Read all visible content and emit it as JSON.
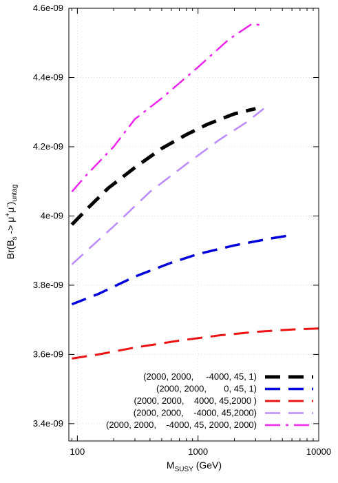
{
  "chart_data": {
    "type": "line",
    "xlabel_main": "M",
    "xlabel_sub": "SUSY",
    "xlabel_rest": " (GeV)",
    "ylabel_parts": [
      "Br(B",
      "s",
      " -> μ",
      "+",
      "μ",
      "-",
      ")",
      "untag"
    ],
    "x_scale": "log",
    "xlim": [
      85,
      10000
    ],
    "ylim": [
      3.35e-09,
      4.6e-09
    ],
    "x_ticks": [
      {
        "value": 100,
        "label": "100"
      },
      {
        "value": 1000,
        "label": "1000"
      },
      {
        "value": 10000,
        "label": "10000"
      }
    ],
    "y_ticks": [
      {
        "value": 3.4e-09,
        "label": "3.4e-09"
      },
      {
        "value": 3.6e-09,
        "label": "3.6e-09"
      },
      {
        "value": 3.8e-09,
        "label": "3.8e-09"
      },
      {
        "value": 4e-09,
        "label": "4e-09"
      },
      {
        "value": 4.2e-09,
        "label": "4.2e-09"
      },
      {
        "value": 4.4e-09,
        "label": "4.4e-09"
      },
      {
        "value": 4.6e-09,
        "label": "4.6e-09"
      }
    ],
    "grid": true,
    "legend_position": "bottom-right",
    "series": [
      {
        "name": "(2000, 2000,     -4000, 45, 1)",
        "color": "#000000",
        "width": 5,
        "dash": "22 12",
        "points": [
          [
            90,
            3.975e-09
          ],
          [
            120,
            4.02e-09
          ],
          [
            180,
            4.08e-09
          ],
          [
            300,
            4.14e-09
          ],
          [
            500,
            4.195e-09
          ],
          [
            800,
            4.235e-09
          ],
          [
            1200,
            4.265e-09
          ],
          [
            2000,
            4.295e-09
          ],
          [
            3000,
            4.31e-09
          ]
        ]
      },
      {
        "name": "(2000, 2000,       0, 45, 1)",
        "color": "#0000dd",
        "width": 3.5,
        "dash": "22 12",
        "points": [
          [
            90,
            3.745e-09
          ],
          [
            150,
            3.775e-09
          ],
          [
            300,
            3.825e-09
          ],
          [
            600,
            3.865e-09
          ],
          [
            1000,
            3.89e-09
          ],
          [
            2000,
            3.915e-09
          ],
          [
            4000,
            3.935e-09
          ],
          [
            6000,
            3.945e-09
          ]
        ]
      },
      {
        "name": "(2000, 2000,    4000, 45,2000 )",
        "color": "#ee1111",
        "width": 3,
        "dash": "22 12",
        "points": [
          [
            90,
            3.588e-09
          ],
          [
            150,
            3.6e-09
          ],
          [
            300,
            3.62e-09
          ],
          [
            700,
            3.64e-09
          ],
          [
            1500,
            3.655e-09
          ],
          [
            3000,
            3.665e-09
          ],
          [
            6000,
            3.672e-09
          ],
          [
            10000,
            3.675e-09
          ]
        ]
      },
      {
        "name": "(2000, 2000,    -4000, 45,2000)",
        "color": "#bb88ff",
        "width": 2.5,
        "dash": "22 12",
        "points": [
          [
            90,
            3.86e-09
          ],
          [
            120,
            3.9e-09
          ],
          [
            200,
            3.97e-09
          ],
          [
            400,
            4.07e-09
          ],
          [
            800,
            4.15e-09
          ],
          [
            1500,
            4.22e-09
          ],
          [
            2500,
            4.27e-09
          ],
          [
            3500,
            4.31e-09
          ]
        ]
      },
      {
        "name": "(2000, 2000,    -4000, 45, 2000, 2000)",
        "color": "#ee22ee",
        "width": 2.5,
        "dash": "22 8 4 8",
        "points": [
          [
            90,
            4.07e-09
          ],
          [
            120,
            4.12e-09
          ],
          [
            200,
            4.2e-09
          ],
          [
            300,
            4.28e-09
          ],
          [
            500,
            4.34e-09
          ],
          [
            1000,
            4.43e-09
          ],
          [
            1800,
            4.51e-09
          ],
          [
            2800,
            4.555e-09
          ],
          [
            3500,
            4.55e-09
          ]
        ]
      }
    ]
  }
}
